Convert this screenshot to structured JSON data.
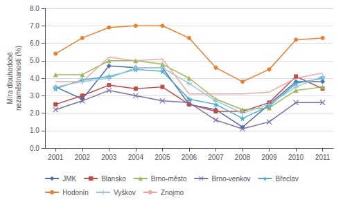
{
  "chart_data": {
    "type": "line",
    "ylabel": "Míra dlouhodobé\nnezaměstnanosti (%)",
    "x": [
      2001,
      2002,
      2003,
      2004,
      2005,
      2006,
      2007,
      2008,
      2009,
      2010,
      2011
    ],
    "xlim": [
      2000.6,
      2011.4
    ],
    "xticks": [
      2001,
      2002,
      2003,
      2004,
      2005,
      2006,
      2007,
      2008,
      2009,
      2010,
      2011
    ],
    "ylim": [
      0.0,
      8.0
    ],
    "yticks": [
      {
        "value": 0,
        "label": "0.0"
      },
      {
        "value": 1,
        "label": "1.0"
      },
      {
        "value": 2,
        "label": "2.0"
      },
      {
        "value": 3,
        "label": "3.0"
      },
      {
        "value": 4,
        "label": "4.0"
      },
      {
        "value": 5,
        "label": "5.0"
      },
      {
        "value": 6,
        "label": "6.0"
      },
      {
        "value": 7,
        "label": "7.0"
      },
      {
        "value": 8,
        "label": "8.0"
      }
    ],
    "grid": true,
    "legend": "bottom",
    "series": [
      {
        "name": "JMK",
        "color": "#4F6CA8",
        "marker": "diamond",
        "values": [
          3.5,
          2.8,
          4.7,
          4.6,
          4.6,
          2.5,
          2.2,
          1.2,
          2.5,
          3.8,
          3.8
        ]
      },
      {
        "name": "Blansko",
        "color": "#BE4B48",
        "marker": "square",
        "values": [
          2.5,
          3.0,
          3.6,
          3.4,
          3.5,
          2.5,
          2.1,
          2.1,
          2.6,
          4.1,
          3.4
        ]
      },
      {
        "name": "Brno-město",
        "color": "#9BBB59",
        "marker": "triangle",
        "values": [
          4.2,
          4.2,
          5.0,
          5.0,
          4.8,
          4.0,
          2.8,
          2.2,
          2.3,
          3.3,
          3.5
        ]
      },
      {
        "name": "Brno-venkov",
        "color": "#7E6CA8",
        "marker": "x",
        "values": [
          2.2,
          2.7,
          3.3,
          3.0,
          2.7,
          2.6,
          1.6,
          1.1,
          1.5,
          2.6,
          2.6
        ]
      },
      {
        "name": "Břeclav",
        "color": "#4BACC6",
        "marker": "star",
        "values": [
          3.4,
          3.9,
          4.1,
          4.5,
          4.4,
          2.8,
          2.5,
          1.7,
          2.4,
          3.7,
          4.0
        ]
      },
      {
        "name": "Hodonín",
        "color": "#E88033",
        "marker": "circle",
        "values": [
          5.4,
          6.3,
          6.9,
          7.0,
          7.0,
          6.3,
          4.6,
          3.8,
          4.5,
          6.2,
          6.3
        ]
      },
      {
        "name": "Vyškov",
        "color": "#9EC6E0",
        "marker": "plus",
        "values": [
          3.5,
          3.8,
          4.0,
          4.6,
          4.6,
          3.7,
          2.7,
          2.0,
          2.5,
          3.5,
          4.1
        ]
      },
      {
        "name": "Znojmo",
        "color": "#EAA9A8",
        "marker": "none",
        "values": [
          3.8,
          3.8,
          5.2,
          5.0,
          5.1,
          3.1,
          3.1,
          3.1,
          3.2,
          4.0,
          4.3
        ]
      }
    ]
  }
}
